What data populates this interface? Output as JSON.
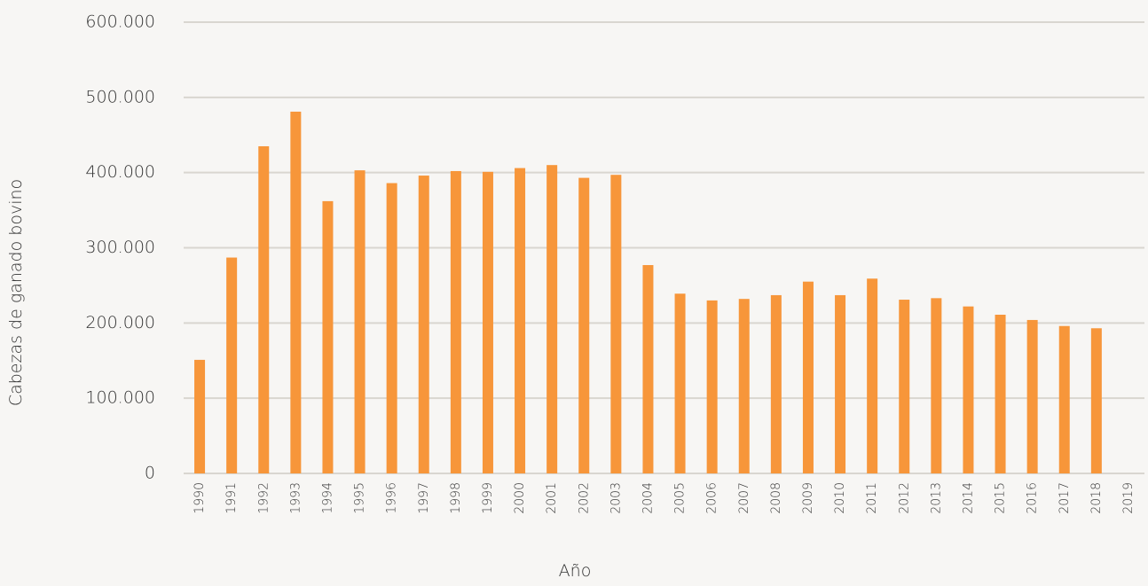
{
  "chart_data": {
    "type": "bar",
    "x_label": "Año",
    "y_label": "Cabezas de ganado bovino",
    "categories": [
      "1990",
      "1991",
      "1992",
      "1993",
      "1994",
      "1995",
      "1996",
      "1997",
      "1998",
      "1999",
      "2000",
      "2001",
      "2002",
      "2003",
      "2004",
      "2005",
      "2006",
      "2007",
      "2008",
      "2009",
      "2010",
      "2011",
      "2012",
      "2013",
      "2014",
      "2015",
      "2016",
      "2017",
      "2018",
      "2019"
    ],
    "values": [
      151000,
      287000,
      435000,
      481000,
      362000,
      403000,
      386000,
      396000,
      402000,
      401000,
      406000,
      410000,
      393000,
      397000,
      277000,
      239000,
      230000,
      232000,
      237000,
      255000,
      237000,
      259000,
      231000,
      233000,
      222000,
      211000,
      204000,
      196000,
      193000,
      null
    ],
    "color": "#f7963a",
    "ylim": [
      0,
      600000
    ],
    "yticks": [
      0,
      {
        "value": 100000,
        "label": "100.000"
      },
      {
        "value": 200000,
        "label": "200.000"
      },
      {
        "value": 300000,
        "label": "300.000"
      },
      {
        "value": 400000,
        "label": "400.000"
      },
      {
        "value": 500000,
        "label": "500.000"
      },
      {
        "value": 600000,
        "label": "600.000"
      }
    ],
    "grid": true
  }
}
